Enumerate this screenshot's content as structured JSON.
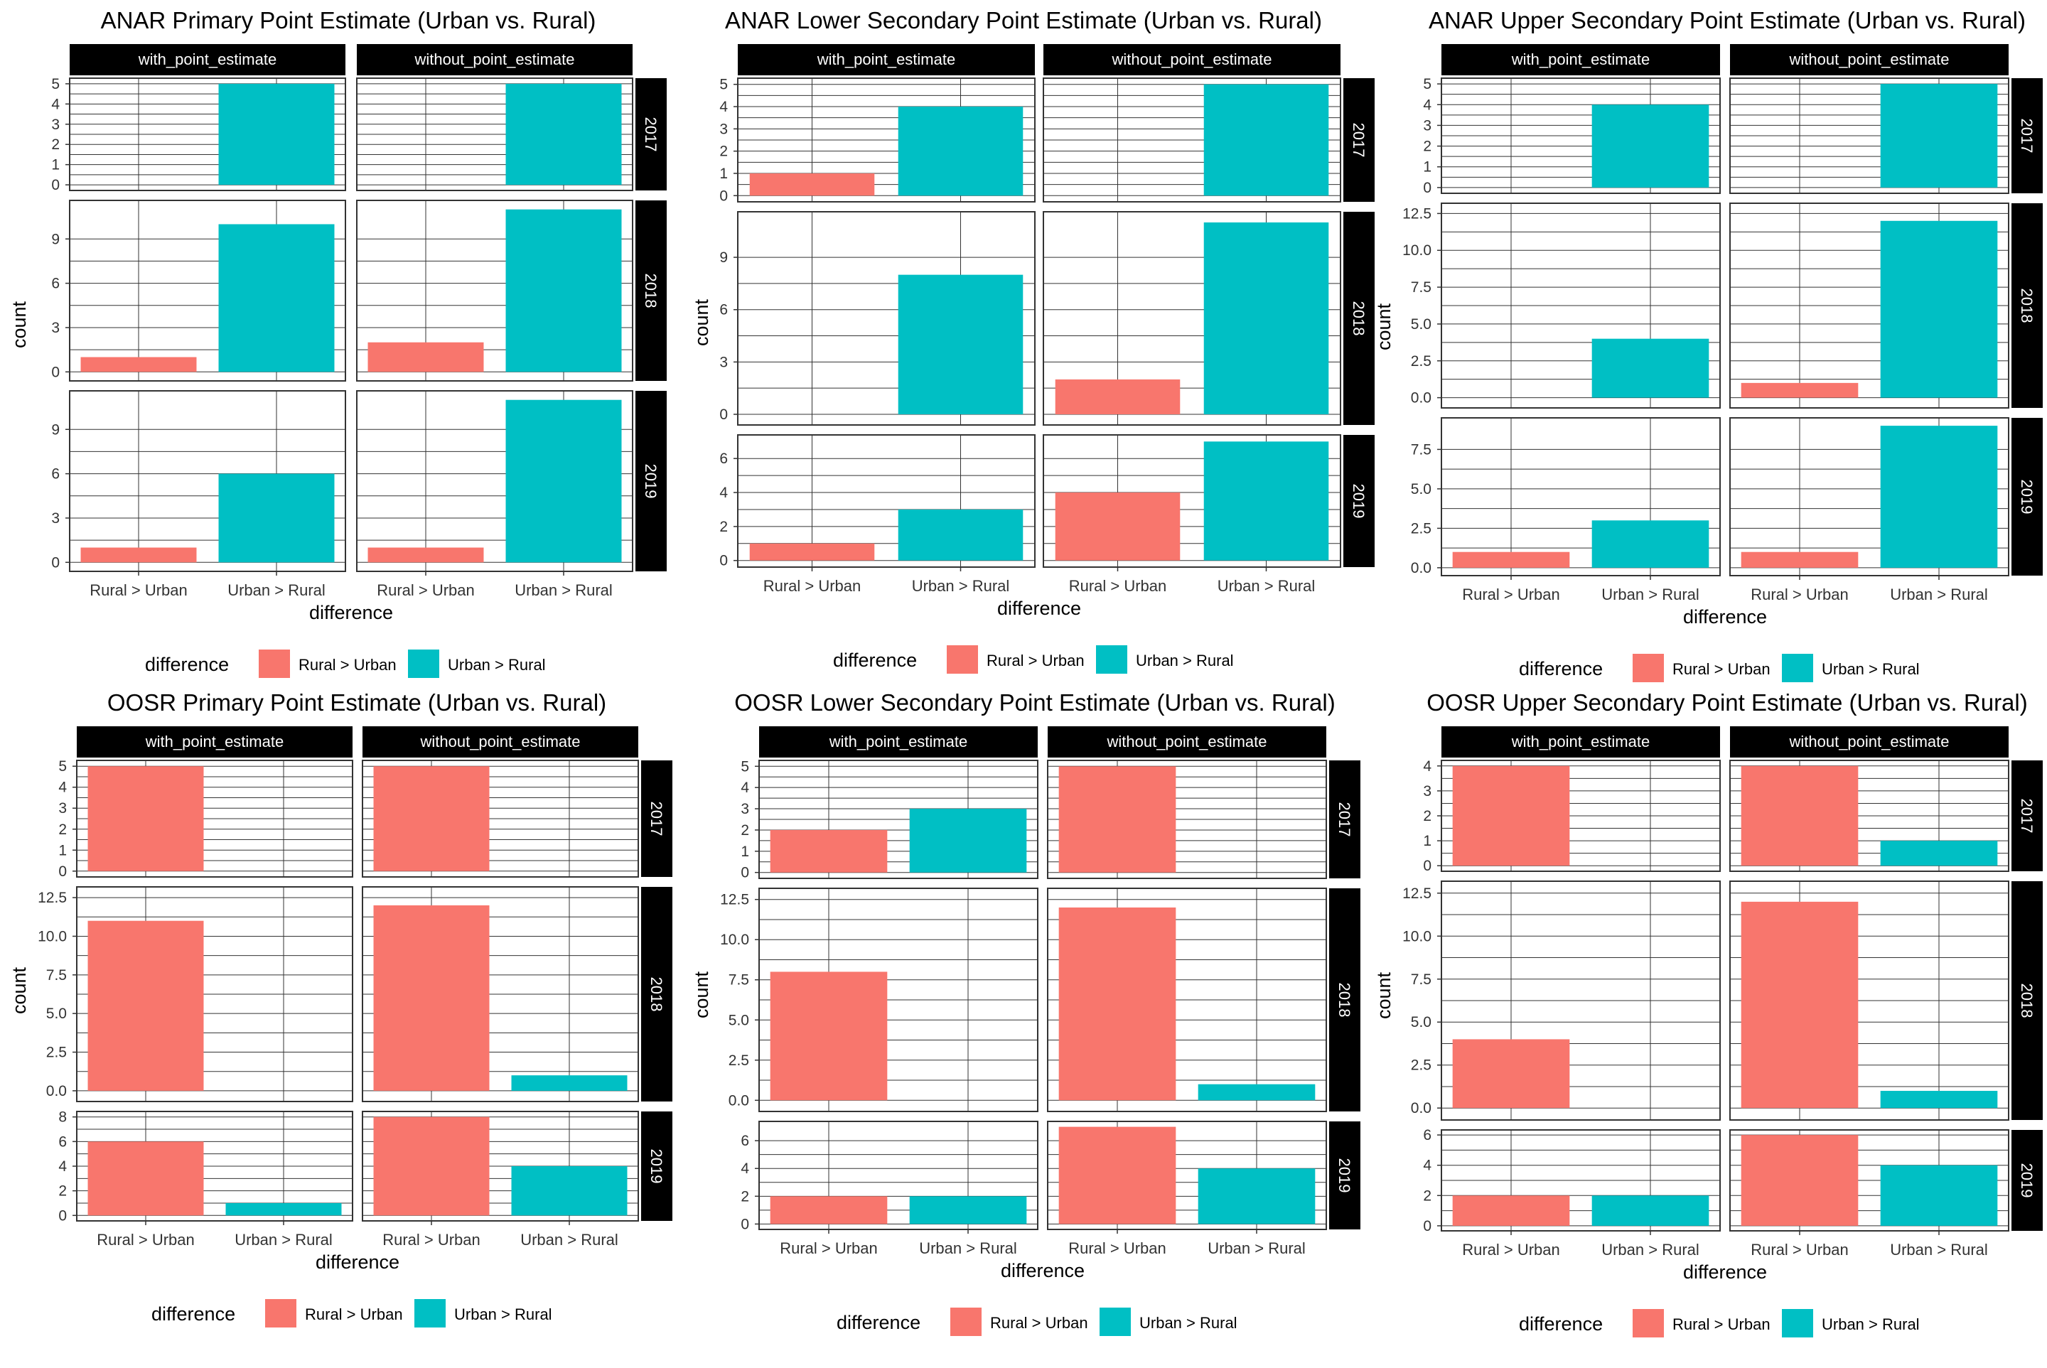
{
  "colors": {
    "rural_gt_urban": "#F8766D",
    "urban_gt_rural": "#00BFC4",
    "strip_bg": "#000000",
    "strip_text": "#FFFFFF",
    "grid": "#333333",
    "panel_border": "#333333"
  },
  "chart_data": [
    {
      "type": "bar",
      "title": "ANAR Primary Point Estimate (Urban vs. Rural)",
      "xlabel": "difference",
      "ylabel": "count",
      "categories": [
        "Rural >  Urban",
        "Urban > Rural"
      ],
      "columns": [
        "with_point_estimate",
        "without_point_estimate"
      ],
      "rows": [
        {
          "year": "2017",
          "ylim": [
            0,
            5
          ],
          "ticks": [
            "0",
            "1",
            "2",
            "3",
            "4",
            "5"
          ],
          "values": [
            [
              0,
              5
            ],
            [
              0,
              5
            ]
          ]
        },
        {
          "year": "2018",
          "ylim": [
            0,
            11
          ],
          "ticks": [
            "0",
            "3",
            "6",
            "9"
          ],
          "values": [
            [
              1,
              10
            ],
            [
              2,
              11
            ]
          ]
        },
        {
          "year": "2019",
          "ylim": [
            0,
            11
          ],
          "ticks": [
            "0",
            "3",
            "6",
            "9"
          ],
          "values": [
            [
              1,
              6
            ],
            [
              1,
              11
            ]
          ]
        }
      ],
      "legend": {
        "title": "difference",
        "items": [
          "Rural >  Urban",
          "Urban > Rural"
        ],
        "position": "bottom"
      },
      "grid": true
    },
    {
      "type": "bar",
      "title": "ANAR Lower Secondary Point Estimate (Urban vs. Rural)",
      "xlabel": "difference",
      "ylabel": "count",
      "categories": [
        "Rural >  Urban",
        "Urban > Rural"
      ],
      "columns": [
        "with_point_estimate",
        "without_point_estimate"
      ],
      "rows": [
        {
          "year": "2017",
          "ylim": [
            0,
            5
          ],
          "ticks": [
            "0",
            "1",
            "2",
            "3",
            "4",
            "5"
          ],
          "values": [
            [
              1,
              4
            ],
            [
              0,
              5
            ]
          ]
        },
        {
          "year": "2018",
          "ylim": [
            0,
            11
          ],
          "ticks": [
            "0",
            "3",
            "6",
            "9"
          ],
          "values": [
            [
              0,
              8
            ],
            [
              2,
              11
            ]
          ]
        },
        {
          "year": "2019",
          "ylim": [
            0,
            7
          ],
          "ticks": [
            "0",
            "2",
            "4",
            "6"
          ],
          "values": [
            [
              1,
              3
            ],
            [
              4,
              7
            ]
          ]
        }
      ],
      "legend": {
        "title": "difference",
        "items": [
          "Rural >  Urban",
          "Urban > Rural"
        ],
        "position": "bottom"
      },
      "grid": true
    },
    {
      "type": "bar",
      "title": "ANAR Upper Secondary Point Estimate (Urban vs. Rural)",
      "xlabel": "difference",
      "ylabel": "count",
      "categories": [
        "Rural >  Urban",
        "Urban > Rural"
      ],
      "columns": [
        "with_point_estimate",
        "without_point_estimate"
      ],
      "rows": [
        {
          "year": "2017",
          "ylim": [
            0,
            5
          ],
          "ticks": [
            "0",
            "1",
            "2",
            "3",
            "4",
            "5"
          ],
          "values": [
            [
              0,
              4
            ],
            [
              0,
              5
            ]
          ]
        },
        {
          "year": "2018",
          "ylim": [
            0,
            12.5
          ],
          "ticks": [
            "0.0",
            "2.5",
            "5.0",
            "7.5",
            "10.0",
            "12.5"
          ],
          "values": [
            [
              0,
              4
            ],
            [
              1,
              12
            ]
          ]
        },
        {
          "year": "2019",
          "ylim": [
            0,
            9
          ],
          "ticks": [
            "0.0",
            "2.5",
            "5.0",
            "7.5"
          ],
          "values": [
            [
              1,
              3
            ],
            [
              1,
              9
            ]
          ]
        }
      ],
      "legend": {
        "title": "difference",
        "items": [
          "Rural >  Urban",
          "Urban > Rural"
        ],
        "position": "bottom"
      },
      "grid": true
    },
    {
      "type": "bar",
      "title": "OOSR Primary Point Estimate (Urban vs. Rural)",
      "xlabel": "difference",
      "ylabel": "count",
      "categories": [
        "Rural >  Urban",
        "Urban > Rural"
      ],
      "columns": [
        "with_point_estimate",
        "without_point_estimate"
      ],
      "rows": [
        {
          "year": "2017",
          "ylim": [
            0,
            5
          ],
          "ticks": [
            "0",
            "1",
            "2",
            "3",
            "4",
            "5"
          ],
          "values": [
            [
              5,
              0
            ],
            [
              5,
              0
            ]
          ]
        },
        {
          "year": "2018",
          "ylim": [
            0,
            12.5
          ],
          "ticks": [
            "0.0",
            "2.5",
            "5.0",
            "7.5",
            "10.0",
            "12.5"
          ],
          "values": [
            [
              11,
              0
            ],
            [
              12,
              1
            ]
          ]
        },
        {
          "year": "2019",
          "ylim": [
            0,
            8
          ],
          "ticks": [
            "0",
            "2",
            "4",
            "6",
            "8"
          ],
          "values": [
            [
              6,
              1
            ],
            [
              8,
              4
            ]
          ]
        }
      ],
      "legend": {
        "title": "difference",
        "items": [
          "Rural >  Urban",
          "Urban > Rural"
        ],
        "position": "bottom"
      },
      "grid": true
    },
    {
      "type": "bar",
      "title": "OOSR Lower Secondary Point Estimate (Urban vs. Rural)",
      "xlabel": "difference",
      "ylabel": "count",
      "categories": [
        "Rural >  Urban",
        "Urban > Rural"
      ],
      "columns": [
        "with_point_estimate",
        "without_point_estimate"
      ],
      "rows": [
        {
          "year": "2017",
          "ylim": [
            0,
            5
          ],
          "ticks": [
            "0",
            "1",
            "2",
            "3",
            "4",
            "5"
          ],
          "values": [
            [
              2,
              3
            ],
            [
              5,
              0
            ]
          ]
        },
        {
          "year": "2018",
          "ylim": [
            0,
            12.5
          ],
          "ticks": [
            "0.0",
            "2.5",
            "5.0",
            "7.5",
            "10.0",
            "12.5"
          ],
          "values": [
            [
              8,
              0
            ],
            [
              12,
              1
            ]
          ]
        },
        {
          "year": "2019",
          "ylim": [
            0,
            7
          ],
          "ticks": [
            "0",
            "2",
            "4",
            "6"
          ],
          "values": [
            [
              2,
              2
            ],
            [
              7,
              4
            ]
          ]
        }
      ],
      "legend": {
        "title": "difference",
        "items": [
          "Rural >  Urban",
          "Urban > Rural"
        ],
        "position": "bottom"
      },
      "grid": true
    },
    {
      "type": "bar",
      "title": "OOSR Upper Secondary Point Estimate (Urban vs. Rural)",
      "xlabel": "difference",
      "ylabel": "count",
      "categories": [
        "Rural >  Urban",
        "Urban > Rural"
      ],
      "columns": [
        "with_point_estimate",
        "without_point_estimate"
      ],
      "rows": [
        {
          "year": "2017",
          "ylim": [
            0,
            4
          ],
          "ticks": [
            "0",
            "1",
            "2",
            "3",
            "4"
          ],
          "values": [
            [
              4,
              0
            ],
            [
              4,
              1
            ]
          ]
        },
        {
          "year": "2018",
          "ylim": [
            0,
            12.5
          ],
          "ticks": [
            "0.0",
            "2.5",
            "5.0",
            "7.5",
            "10.0",
            "12.5"
          ],
          "values": [
            [
              4,
              0
            ],
            [
              12,
              1
            ]
          ]
        },
        {
          "year": "2019",
          "ylim": [
            0,
            6
          ],
          "ticks": [
            "0",
            "2",
            "4",
            "6"
          ],
          "values": [
            [
              2,
              2
            ],
            [
              6,
              4
            ]
          ]
        }
      ],
      "legend": {
        "title": "difference",
        "items": [
          "Rural >  Urban",
          "Urban > Rural"
        ],
        "position": "bottom"
      },
      "grid": true
    }
  ]
}
